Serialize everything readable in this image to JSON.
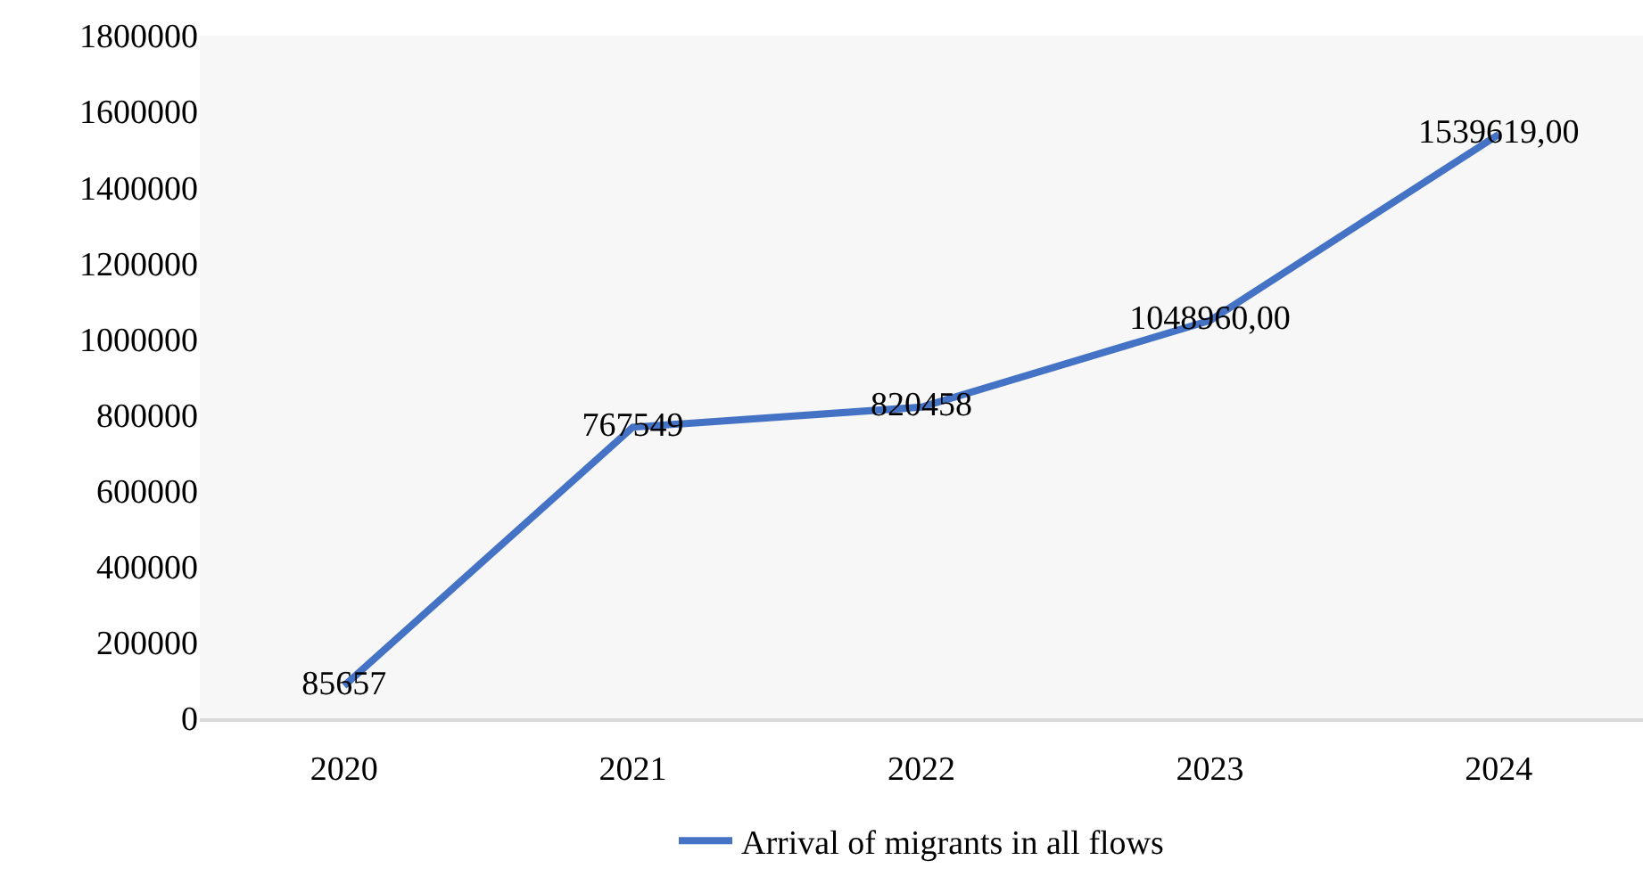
{
  "chart_data": {
    "type": "line",
    "categories": [
      "2020",
      "2021",
      "2022",
      "2023",
      "2024"
    ],
    "series": [
      {
        "name": "Arrival of migrants in all flows",
        "color": "#4472c4",
        "values": [
          85657,
          767549,
          820458,
          1048960,
          1539619
        ],
        "value_labels": [
          "85657",
          "767549",
          "820458",
          "1048960,00",
          "1539619,00"
        ]
      }
    ],
    "ylim": [
      0,
      1800000
    ],
    "yticks": [
      0,
      200000,
      400000,
      600000,
      800000,
      1000000,
      1200000,
      1400000,
      1600000,
      1800000
    ],
    "grid": false,
    "legend": "bottom",
    "marker": "none",
    "line_style": "solid"
  }
}
